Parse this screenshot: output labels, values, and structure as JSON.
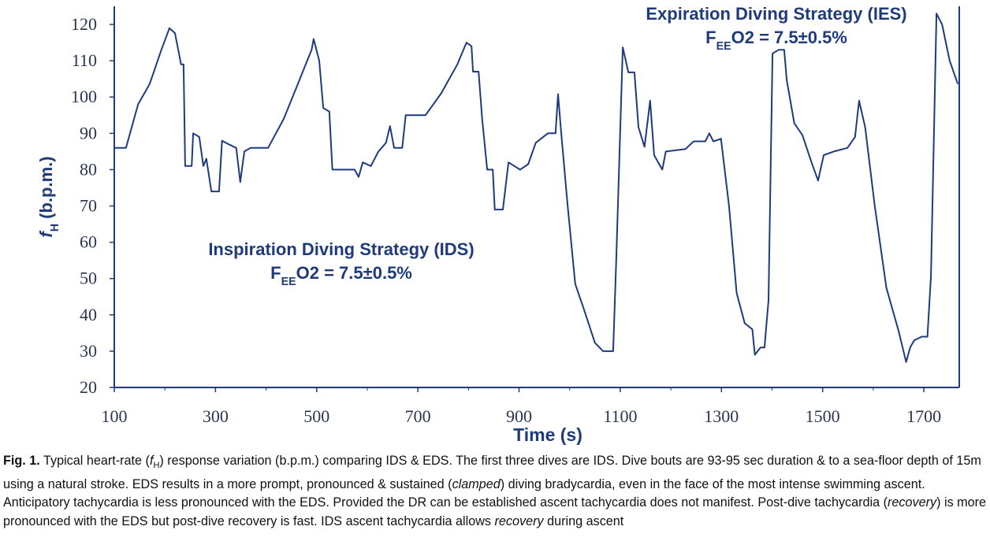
{
  "chart_data": {
    "type": "line",
    "xlabel": "Time (s)",
    "ylabel": [
      {
        "text": "f",
        "style": "italic"
      },
      {
        "text": "H",
        "style": "sub"
      },
      {
        "text": " (b.p.m.)",
        "style": "normal"
      }
    ],
    "annotations": [
      {
        "title": "Expiration Diving Strategy (IES)",
        "formula": [
          {
            "text": "F",
            "style": "normal"
          },
          {
            "text": "EE",
            "style": "sub"
          },
          {
            "text": "O2 = 7.5±0.5%",
            "style": "normal"
          }
        ],
        "corner": "top-right"
      },
      {
        "title": "Inspiration Diving Strategy (IDS)",
        "formula": [
          {
            "text": "F",
            "style": "normal"
          },
          {
            "text": "EE",
            "style": "sub"
          },
          {
            "text": "O2 = 7.5±0.5%",
            "style": "normal"
          }
        ],
        "corner": "middle-left"
      }
    ],
    "x": [
      100,
      123,
      147,
      170,
      193,
      209,
      220,
      232,
      237,
      240,
      253,
      256,
      268,
      276,
      282,
      292,
      307,
      313,
      326,
      341,
      349,
      357,
      369,
      404,
      435,
      466,
      490,
      494,
      505,
      513,
      525,
      531,
      575,
      583,
      591,
      607,
      622,
      637,
      645,
      653,
      669,
      676,
      715,
      746,
      778,
      796,
      806,
      809,
      820,
      827,
      837,
      848,
      852,
      868,
      879,
      902,
      918,
      933,
      957,
      972,
      977,
      983,
      996,
      1011,
      1027,
      1050,
      1066,
      1086,
      1092,
      1105,
      1116,
      1128,
      1136,
      1148,
      1159,
      1167,
      1183,
      1190,
      1229,
      1245,
      1268,
      1276,
      1284,
      1299,
      1315,
      1330,
      1346,
      1361,
      1366,
      1377,
      1385,
      1393,
      1401,
      1413,
      1424,
      1429,
      1444,
      1460,
      1478,
      1491,
      1502,
      1522,
      1549,
      1564,
      1572,
      1584,
      1603,
      1626,
      1650,
      1665,
      1673,
      1681,
      1696,
      1707,
      1714,
      1725,
      1736,
      1751,
      1767
    ],
    "series": [
      {
        "name": "fH",
        "color": "#1f3b7c",
        "values": [
          86,
          86,
          98,
          103.6,
          113,
          119,
          117.6,
          109,
          109,
          81,
          81,
          90,
          89,
          81,
          83,
          74,
          74,
          88,
          87,
          86,
          76.6,
          85,
          86,
          86,
          94,
          104.7,
          113,
          116,
          110,
          97,
          96,
          80,
          80,
          78,
          82,
          81,
          85,
          87.4,
          92,
          86,
          86,
          95,
          95,
          101,
          109,
          115,
          114,
          107,
          107,
          94,
          80,
          80,
          69,
          69,
          82,
          80,
          81.5,
          87.4,
          90,
          90,
          100.8,
          90.6,
          70,
          48.5,
          42,
          32.3,
          30,
          30,
          55,
          113.7,
          106.8,
          106.8,
          91.7,
          86.3,
          99,
          84,
          80,
          85,
          85.7,
          87.8,
          87.8,
          90,
          87.8,
          88.5,
          70,
          46,
          37.7,
          36,
          29,
          31,
          31,
          44,
          112,
          113,
          113,
          104.7,
          92.8,
          89.5,
          82,
          77,
          84,
          85,
          86,
          89,
          99,
          91.7,
          70,
          47.4,
          35.6,
          27,
          31,
          33,
          34,
          34,
          50.7,
          123,
          120,
          110,
          103.6
        ]
      }
    ],
    "xlim": [
      100,
      1770
    ],
    "ylim": [
      20,
      125
    ],
    "xticks": [
      100,
      300,
      500,
      700,
      900,
      1100,
      1300,
      1500,
      1700
    ],
    "yticks": [
      20,
      30,
      40,
      50,
      60,
      70,
      80,
      90,
      100,
      110,
      120
    ],
    "grid": false,
    "caption": [
      {
        "text": "Fig. 1.",
        "style": "bold"
      },
      {
        "text": " Typical heart-rate (",
        "style": "normal"
      },
      {
        "text": "f",
        "style": "italic"
      },
      {
        "text": "H",
        "style": "sub"
      },
      {
        "text": ") response variation (b.p.m.) comparing IDS & EDS. The first three dives are IDS. Dive bouts are 93-95 sec duration & to a sea-floor depth of 15m using a natural stroke. EDS results in a more prompt, pronounced & sustained (",
        "style": "normal"
      },
      {
        "text": "clamped",
        "style": "italic"
      },
      {
        "text": ") diving bradycardia, even in the face of the most intense swimming ascent. Anticipatory tachycardia is less pronounced with the EDS. Provided the DR can be established ascent tachycardia does not manifest. Post-dive tachycardia (",
        "style": "normal"
      },
      {
        "text": "recovery",
        "style": "italic"
      },
      {
        "text": ") is more pronounced with the EDS but post-dive recovery is fast. IDS ascent tachycardia allows ",
        "style": "normal"
      },
      {
        "text": "recovery",
        "style": "italic"
      },
      {
        "text": " during ascent",
        "style": "normal"
      }
    ]
  }
}
